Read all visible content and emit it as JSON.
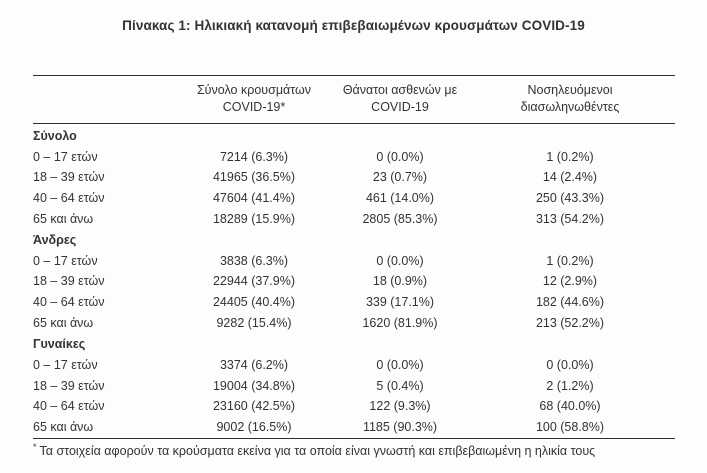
{
  "title": "Πίνακας 1: Ηλικιακή κατανομή επιβεβαιωμένων κρουσμάτων COVID-19",
  "colors": {
    "text": "#333333",
    "rule": "#2e2e2e",
    "background": "#fdfdfd"
  },
  "table": {
    "columns": [
      {
        "line1": "Σύνολο κρουσμάτων",
        "line2": "COVID-19*"
      },
      {
        "line1": "Θάνατοι ασθενών με",
        "line2": "COVID-19"
      },
      {
        "line1": "Νοσηλευόμενοι",
        "line2": "διασωληνωθέντες"
      }
    ],
    "groups": [
      {
        "label": "Σύνολο",
        "rows": [
          {
            "age": "0 – 17 ετών",
            "cases": "7214 (6.3%)",
            "deaths": "0 (0.0%)",
            "intubated": "1 (0.2%)"
          },
          {
            "age": "18 – 39 ετών",
            "cases": "41965 (36.5%)",
            "deaths": "23 (0.7%)",
            "intubated": "14 (2.4%)"
          },
          {
            "age": "40 – 64 ετών",
            "cases": "47604 (41.4%)",
            "deaths": "461 (14.0%)",
            "intubated": "250 (43.3%)"
          },
          {
            "age": "65 και άνω",
            "cases": "18289 (15.9%)",
            "deaths": "2805 (85.3%)",
            "intubated": "313 (54.2%)"
          }
        ]
      },
      {
        "label": "Άνδρες",
        "rows": [
          {
            "age": "0 – 17 ετών",
            "cases": "3838 (6.3%)",
            "deaths": "0 (0.0%)",
            "intubated": "1 (0.2%)"
          },
          {
            "age": "18 – 39 ετών",
            "cases": "22944 (37.9%)",
            "deaths": "18 (0.9%)",
            "intubated": "12 (2.9%)"
          },
          {
            "age": "40 – 64 ετών",
            "cases": "24405 (40.4%)",
            "deaths": "339 (17.1%)",
            "intubated": "182 (44.6%)"
          },
          {
            "age": "65 και άνω",
            "cases": "9282 (15.4%)",
            "deaths": "1620 (81.9%)",
            "intubated": "213 (52.2%)"
          }
        ]
      },
      {
        "label": "Γυναίκες",
        "rows": [
          {
            "age": "0 – 17 ετών",
            "cases": "3374 (6.2%)",
            "deaths": "0 (0.0%)",
            "intubated": "0 (0.0%)"
          },
          {
            "age": "18 – 39 ετών",
            "cases": "19004 (34.8%)",
            "deaths": "5 (0.4%)",
            "intubated": "2 (1.2%)"
          },
          {
            "age": "40 – 64 ετών",
            "cases": "23160 (42.5%)",
            "deaths": "122 (9.3%)",
            "intubated": "68 (40.0%)"
          },
          {
            "age": "65 και άνω",
            "cases": "9002 (16.5%)",
            "deaths": "1185 (90.3%)",
            "intubated": "100 (58.8%)"
          }
        ]
      }
    ]
  },
  "footnote": {
    "marker": "*",
    "text": "Τα στοιχεία αφορούν τα κρούσματα εκείνα για τα οποία είναι γνωστή και επιβεβαιωμένη η ηλικία τους"
  }
}
